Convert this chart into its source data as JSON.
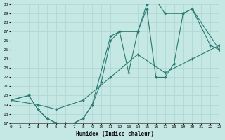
{
  "xlabel": "Humidex (Indice chaleur)",
  "xlim": [
    0,
    23
  ],
  "ylim": [
    17,
    30
  ],
  "xticks": [
    0,
    1,
    2,
    3,
    4,
    5,
    6,
    7,
    8,
    9,
    10,
    11,
    12,
    13,
    14,
    15,
    16,
    17,
    18,
    19,
    20,
    21,
    22,
    23
  ],
  "yticks": [
    17,
    18,
    19,
    20,
    21,
    22,
    23,
    24,
    25,
    26,
    27,
    28,
    29,
    30
  ],
  "bg_color": "#c5e8e5",
  "grid_color": "#b0d8d5",
  "line_color": "#2a7a72",
  "curve1_x": [
    0,
    2,
    3,
    4,
    5,
    6,
    7,
    8,
    9,
    11,
    12,
    13,
    14,
    15,
    16,
    17,
    19,
    20,
    22,
    23
  ],
  "curve1_y": [
    19.5,
    20.0,
    18.5,
    17.5,
    17.0,
    17.0,
    17.0,
    17.5,
    19.0,
    26.5,
    27.0,
    22.5,
    27.0,
    30.0,
    30.5,
    29.0,
    29.0,
    29.5,
    25.5,
    25.0
  ],
  "curve2_x": [
    0,
    2,
    3,
    4,
    5,
    6,
    7,
    8,
    9,
    10,
    11,
    12,
    14,
    15,
    16,
    17,
    18,
    19,
    20,
    23
  ],
  "curve2_y": [
    19.5,
    20.0,
    18.5,
    17.5,
    17.0,
    17.0,
    17.0,
    17.5,
    19.0,
    21.5,
    26.0,
    27.0,
    27.0,
    29.5,
    22.0,
    22.0,
    23.5,
    29.0,
    29.5,
    25.0
  ],
  "curve3_x": [
    0,
    3,
    5,
    8,
    11,
    14,
    17,
    20,
    23
  ],
  "curve3_y": [
    19.5,
    19.0,
    18.5,
    19.5,
    22.0,
    24.5,
    22.5,
    24.0,
    25.5
  ]
}
